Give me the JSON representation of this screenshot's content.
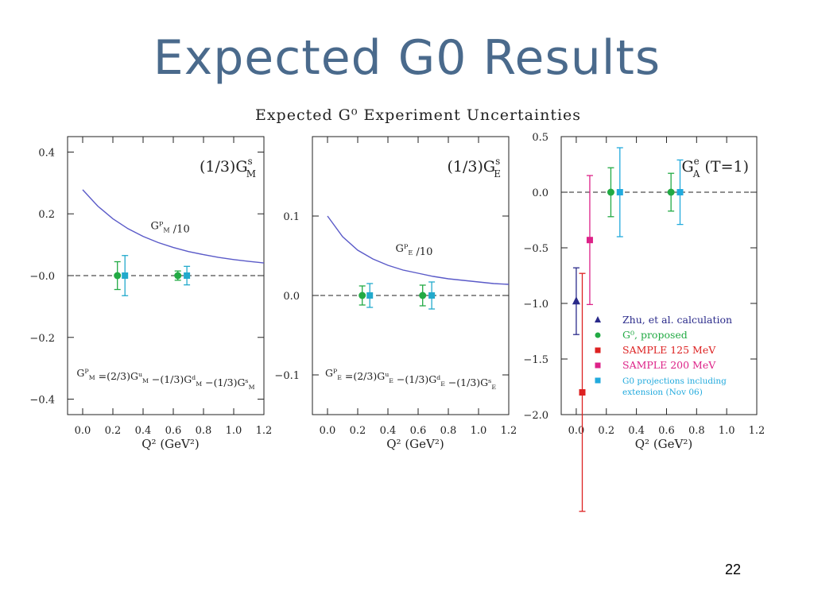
{
  "slide": {
    "title": "Expected G0 Results",
    "page_number": "22"
  },
  "figure_title": "Expected G⁰ Experiment Uncertainties",
  "chart_data": [
    {
      "type": "scatter",
      "panel_label": "(1/3)G",
      "panel_label_sub": "M",
      "panel_label_sup": "s",
      "xlabel": "Q² (GeV²)",
      "xlim": [
        -0.1,
        1.2
      ],
      "ylim": [
        -0.45,
        0.45
      ],
      "xticks": [
        0.0,
        0.2,
        0.4,
        0.6,
        0.8,
        1.0,
        1.2
      ],
      "xtick_labels": [
        "0.0",
        "0.2",
        "0.4",
        "0.6",
        "0.8",
        "1.0",
        "1.2"
      ],
      "yticks": [
        -0.4,
        -0.2,
        0.0,
        0.2,
        0.4
      ],
      "ytick_labels": [
        "−0.4",
        "−0.2",
        "−0.0",
        "0.2",
        "0.4"
      ],
      "curve": {
        "label": "Gᴾ_M /10",
        "color": "#5a5ac8",
        "x": [
          0.0,
          0.1,
          0.2,
          0.3,
          0.4,
          0.5,
          0.6,
          0.7,
          0.8,
          0.9,
          1.0,
          1.1,
          1.2
        ],
        "y": [
          0.278,
          0.225,
          0.184,
          0.152,
          0.127,
          0.107,
          0.091,
          0.078,
          0.068,
          0.059,
          0.052,
          0.046,
          0.041
        ]
      },
      "curve_label_pos": [
        0.45,
        0.15
      ],
      "zero_line": true,
      "formula": "Gᴾ_M =(2/3)Gᵘ_M −(1/3)Gᵈ_M −(1/3)Gˢ_M",
      "series": [
        {
          "name": "G0 proposed",
          "marker": "circle",
          "color": "#22aa44",
          "points": [
            {
              "x": 0.23,
              "y": 0.0,
              "err": 0.045
            },
            {
              "x": 0.63,
              "y": 0.0,
              "err": 0.015
            }
          ]
        },
        {
          "name": "G0 projections",
          "marker": "square",
          "color": "#22aacc",
          "points": [
            {
              "x": 0.28,
              "y": 0.0,
              "err": 0.065
            },
            {
              "x": 0.69,
              "y": 0.0,
              "err": 0.03
            }
          ]
        }
      ]
    },
    {
      "type": "scatter",
      "panel_label": "(1/3)G",
      "panel_label_sub": "E",
      "panel_label_sup": "s",
      "xlabel": "Q² (GeV²)",
      "xlim": [
        -0.1,
        1.2
      ],
      "ylim": [
        -0.15,
        0.2
      ],
      "xticks": [
        0.0,
        0.2,
        0.4,
        0.6,
        0.8,
        1.0,
        1.2
      ],
      "xtick_labels": [
        "0.0",
        "0.2",
        "0.4",
        "0.6",
        "0.8",
        "1.0",
        "1.2"
      ],
      "yticks": [
        -0.1,
        0.0,
        0.1
      ],
      "ytick_labels": [
        "−0.1",
        "0.0",
        "0.1"
      ],
      "curve": {
        "label": "Gᴾ_E /10",
        "color": "#5a5ac8",
        "x": [
          0.0,
          0.1,
          0.2,
          0.3,
          0.4,
          0.5,
          0.6,
          0.7,
          0.8,
          0.9,
          1.0,
          1.1,
          1.2
        ],
        "y": [
          0.1,
          0.074,
          0.057,
          0.046,
          0.038,
          0.032,
          0.028,
          0.024,
          0.021,
          0.019,
          0.017,
          0.015,
          0.014
        ]
      },
      "curve_label_pos": [
        0.45,
        0.055
      ],
      "zero_line": true,
      "formula": "Gᴾ_E =(2/3)Gᵘ_E −(1/3)Gᵈ_E −(1/3)Gˢ_E",
      "series": [
        {
          "name": "G0 proposed",
          "marker": "circle",
          "color": "#22aa44",
          "points": [
            {
              "x": 0.23,
              "y": 0.0,
              "err": 0.012
            },
            {
              "x": 0.63,
              "y": 0.0,
              "err": 0.013
            }
          ]
        },
        {
          "name": "G0 projections",
          "marker": "square",
          "color": "#22aacc",
          "points": [
            {
              "x": 0.28,
              "y": 0.0,
              "err": 0.015
            },
            {
              "x": 0.69,
              "y": 0.0,
              "err": 0.017
            }
          ]
        }
      ]
    },
    {
      "type": "scatter",
      "panel_label": "G",
      "panel_label_sub": "A",
      "panel_label_sup": "e",
      "panel_label_suffix": " (T=1)",
      "xlabel": "Q² (GeV²)",
      "xlim": [
        -0.1,
        1.2
      ],
      "ylim": [
        -2.0,
        0.5
      ],
      "xticks": [
        0.0,
        0.2,
        0.4,
        0.6,
        0.8,
        1.0,
        1.2
      ],
      "xtick_labels": [
        "0.0",
        "0.2",
        "0.4",
        "0.6",
        "0.8",
        "1.0",
        "1.2"
      ],
      "yticks": [
        -2.0,
        -1.5,
        -1.0,
        -0.5,
        0.0,
        0.5
      ],
      "ytick_labels": [
        "−2.0",
        "−1.5",
        "−1.0",
        "−0.5",
        "0.0",
        "0.5"
      ],
      "zero_line": true,
      "series": [
        {
          "name": "Zhu, et al. calculation",
          "marker": "triangle",
          "color": "#2a2a8a",
          "points": [
            {
              "x": 0.0,
              "y": -0.98,
              "err": 0.3
            }
          ]
        },
        {
          "name": "G⁰, proposed",
          "marker": "circle",
          "color": "#22aa44",
          "points": [
            {
              "x": 0.23,
              "y": 0.0,
              "err": 0.22
            },
            {
              "x": 0.63,
              "y": 0.0,
              "err": 0.17
            }
          ]
        },
        {
          "name": "SAMPLE 125 MeV",
          "marker": "square",
          "color": "#dd2222",
          "points": [
            {
              "x": 0.04,
              "y": -1.8,
              "err": 1.07
            }
          ]
        },
        {
          "name": "SAMPLE 200 MeV",
          "marker": "square",
          "color": "#dd2288",
          "points": [
            {
              "x": 0.09,
              "y": -0.43,
              "err": 0.58
            }
          ]
        },
        {
          "name": "G0 projections including extension (Nov 06)",
          "marker": "square",
          "color": "#22aadd",
          "points": [
            {
              "x": 0.29,
              "y": 0.0,
              "err": 0.4
            },
            {
              "x": 0.69,
              "y": 0.0,
              "err": 0.29
            }
          ]
        }
      ],
      "legend": [
        {
          "label": "Zhu, et al. calculation",
          "color": "#2a2a8a",
          "marker": "triangle"
        },
        {
          "label": "G⁰, proposed",
          "color": "#22aa44",
          "marker": "circle"
        },
        {
          "label": "SAMPLE 125 MeV",
          "color": "#dd2222",
          "marker": "square"
        },
        {
          "label": "SAMPLE 200 MeV",
          "color": "#dd2288",
          "marker": "square"
        },
        {
          "label": "G0 projections including",
          "label2": "extension (Nov 06)",
          "color": "#22aadd",
          "marker": "square"
        }
      ],
      "legend_position": "bottom-right"
    }
  ]
}
